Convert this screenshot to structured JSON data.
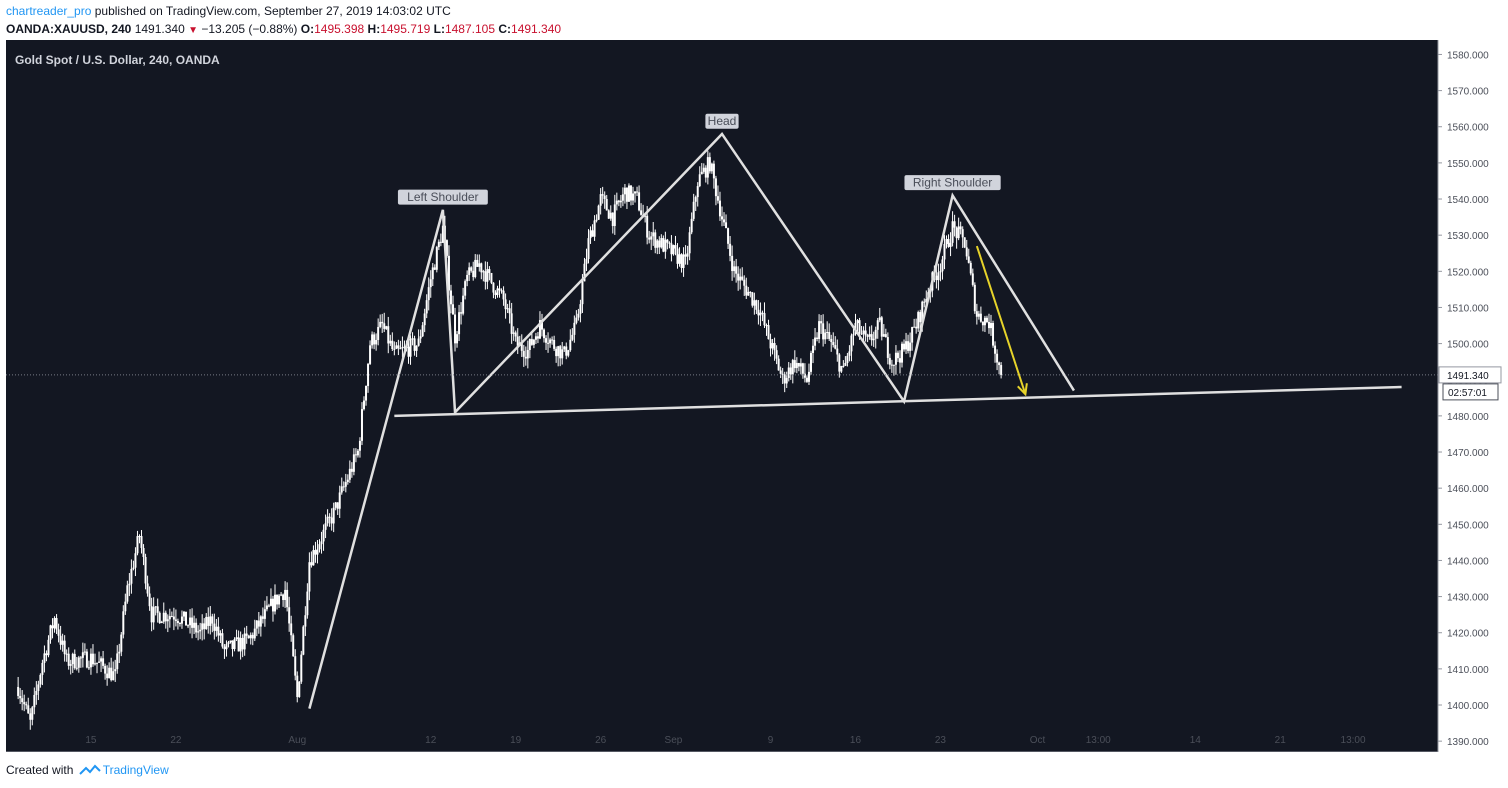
{
  "header": {
    "user": "chartreader_pro",
    "published": "published on TradingView.com, September 27, 2019 14:03:02 UTC",
    "symbol": "OANDA:XAUUSD, 240",
    "last": "1491.340",
    "change": "−13.205 (−0.88%)",
    "o_label": "O:",
    "o_value": "1495.398",
    "h_label": "H:",
    "h_value": "1495.719",
    "l_label": "L:",
    "l_value": "1487.105",
    "c_label": "C:",
    "c_value": "1491.340"
  },
  "footer": {
    "created_with": "Created with",
    "brand": "TradingView"
  },
  "colors": {
    "background": "#131722",
    "candle": "#ffffff",
    "pattern_line": "#e0e0e0",
    "arrow": "#e6d32a",
    "axis_text": "#4b4f59"
  },
  "chart_data": {
    "type": "candlestick",
    "title": "Gold Spot / U.S. Dollar, 240, OANDA",
    "xlabel": "",
    "ylabel": "",
    "ylim": [
      1387,
      1584
    ],
    "y_ticks": [
      "1390.000",
      "1400.000",
      "1410.000",
      "1420.000",
      "1430.000",
      "1440.000",
      "1450.000",
      "1460.000",
      "1470.000",
      "1480.000",
      "1490.000",
      "1500.000",
      "1510.000",
      "1520.000",
      "1530.000",
      "1540.000",
      "1550.000",
      "1560.000",
      "1570.000",
      "1580.000"
    ],
    "x_ticks": [
      {
        "label": "15",
        "date": "2019-07-15"
      },
      {
        "label": "22",
        "date": "2019-07-22"
      },
      {
        "label": "Aug",
        "date": "2019-08-01"
      },
      {
        "label": "12",
        "date": "2019-08-12"
      },
      {
        "label": "19",
        "date": "2019-08-19"
      },
      {
        "label": "26",
        "date": "2019-08-26"
      },
      {
        "label": "Sep",
        "date": "2019-09-01"
      },
      {
        "label": "9",
        "date": "2019-09-09"
      },
      {
        "label": "16",
        "date": "2019-09-16"
      },
      {
        "label": "23",
        "date": "2019-09-23"
      },
      {
        "label": "Oct",
        "date": "2019-10-01"
      },
      {
        "label": "13:00",
        "date": "2019-10-06"
      },
      {
        "label": "14",
        "date": "2019-10-14"
      },
      {
        "label": "21",
        "date": "2019-10-21"
      },
      {
        "label": "13:00",
        "date": "2019-10-27"
      }
    ],
    "price_path": [
      [
        "2019-07-09",
        1405
      ],
      [
        "2019-07-10",
        1395
      ],
      [
        "2019-07-11",
        1412
      ],
      [
        "2019-07-12",
        1424
      ],
      [
        "2019-07-13",
        1412
      ],
      [
        "2019-07-15",
        1413
      ],
      [
        "2019-07-17",
        1408
      ],
      [
        "2019-07-18",
        1432
      ],
      [
        "2019-07-19",
        1447
      ],
      [
        "2019-07-20",
        1425
      ],
      [
        "2019-07-22",
        1425
      ],
      [
        "2019-07-24",
        1420
      ],
      [
        "2019-07-25",
        1424
      ],
      [
        "2019-07-26",
        1415
      ],
      [
        "2019-07-28",
        1418
      ],
      [
        "2019-07-30",
        1428
      ],
      [
        "2019-07-31",
        1432
      ],
      [
        "2019-08-01",
        1402
      ],
      [
        "2019-08-02",
        1440
      ],
      [
        "2019-08-04",
        1453
      ],
      [
        "2019-08-06",
        1470
      ],
      [
        "2019-08-07",
        1500
      ],
      [
        "2019-08-08",
        1505
      ],
      [
        "2019-08-09",
        1497
      ],
      [
        "2019-08-11",
        1500
      ],
      [
        "2019-08-12",
        1518
      ],
      [
        "2019-08-13",
        1532
      ],
      [
        "2019-08-14",
        1502
      ],
      [
        "2019-08-15",
        1518
      ],
      [
        "2019-08-16",
        1522
      ],
      [
        "2019-08-18",
        1512
      ],
      [
        "2019-08-19",
        1500
      ],
      [
        "2019-08-20",
        1498
      ],
      [
        "2019-08-21",
        1505
      ],
      [
        "2019-08-22",
        1500
      ],
      [
        "2019-08-23",
        1497
      ],
      [
        "2019-08-24",
        1505
      ],
      [
        "2019-08-25",
        1528
      ],
      [
        "2019-08-26",
        1540
      ],
      [
        "2019-08-27",
        1535
      ],
      [
        "2019-08-28",
        1542
      ],
      [
        "2019-08-29",
        1540
      ],
      [
        "2019-08-30",
        1530
      ],
      [
        "2019-09-01",
        1525
      ],
      [
        "2019-09-02",
        1522
      ],
      [
        "2019-09-03",
        1545
      ],
      [
        "2019-09-04",
        1550
      ],
      [
        "2019-09-05",
        1535
      ],
      [
        "2019-09-06",
        1520
      ],
      [
        "2019-09-07",
        1515
      ],
      [
        "2019-09-08",
        1510
      ],
      [
        "2019-09-09",
        1500
      ],
      [
        "2019-09-10",
        1490
      ],
      [
        "2019-09-11",
        1495
      ],
      [
        "2019-09-12",
        1490
      ],
      [
        "2019-09-13",
        1505
      ],
      [
        "2019-09-14",
        1500
      ],
      [
        "2019-09-15",
        1492
      ],
      [
        "2019-09-16",
        1505
      ],
      [
        "2019-09-17",
        1500
      ],
      [
        "2019-09-18",
        1505
      ],
      [
        "2019-09-19",
        1495
      ],
      [
        "2019-09-20",
        1498
      ],
      [
        "2019-09-21",
        1505
      ],
      [
        "2019-09-22",
        1515
      ],
      [
        "2019-09-23",
        1522
      ],
      [
        "2019-09-24",
        1532
      ],
      [
        "2019-09-25",
        1528
      ],
      [
        "2019-09-26",
        1508
      ],
      [
        "2019-09-27",
        1506
      ],
      [
        "2019-09-28",
        1491.34
      ]
    ],
    "last_price": "1491.340",
    "countdown": "02:57:01",
    "annotations": [
      {
        "text": "Left Shoulder",
        "date": "2019-08-13",
        "price": 1539
      },
      {
        "text": "Head",
        "date": "2019-09-05",
        "price": 1560
      },
      {
        "text": "Right Shoulder",
        "date": "2019-09-24",
        "price": 1543
      }
    ],
    "pattern_lines": [
      [
        [
          "2019-08-02",
          1399
        ],
        [
          "2019-08-13",
          1537
        ],
        [
          "2019-08-14",
          1481
        ],
        [
          "2019-09-05",
          1558
        ],
        [
          "2019-09-20",
          1484
        ],
        [
          "2019-09-24",
          1541
        ],
        [
          "2019-10-04",
          1487
        ]
      ],
      [
        [
          "2019-08-09",
          1480
        ],
        [
          "2019-10-31",
          1488
        ]
      ]
    ],
    "projection_arrow": [
      [
        "2019-09-26",
        1527
      ],
      [
        "2019-09-30",
        1486
      ]
    ]
  }
}
